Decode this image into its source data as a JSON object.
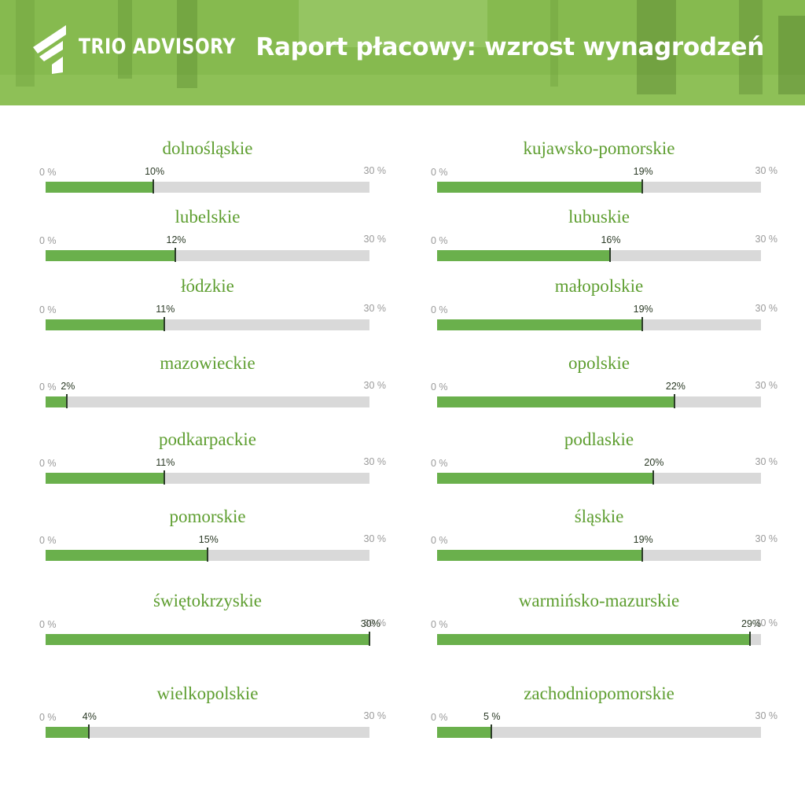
{
  "header": {
    "brand": "TRIO ADVISORY",
    "title": "Raport płacowy: wzrost wynagrodzeń"
  },
  "colors": {
    "header_green": "#7cb342",
    "bar_fill": "#6ab04c",
    "bar_track": "#d9d9d9",
    "region_label": "#5e9e30"
  },
  "icons": {
    "logo": "trio-advisory-logo-icon"
  },
  "chart_data": {
    "type": "bar",
    "orientation": "horizontal",
    "title": "Raport płacowy: wzrost wynagrodzeń",
    "axis": {
      "min": 0,
      "max": 30,
      "min_label": "0 %",
      "max_label": "30 %"
    },
    "grid": false,
    "regions": [
      {
        "name": "dolnośląskie",
        "value": 10,
        "label": "10%"
      },
      {
        "name": "kujawsko-pomorskie",
        "value": 19,
        "label": "19%"
      },
      {
        "name": "lubelskie",
        "value": 12,
        "label": "12%"
      },
      {
        "name": "lubuskie",
        "value": 16,
        "label": "16%"
      },
      {
        "name": "łódzkie",
        "value": 11,
        "label": "11%"
      },
      {
        "name": "małopolskie",
        "value": 19,
        "label": "19%"
      },
      {
        "name": "mazowieckie",
        "value": 2,
        "label": "2%"
      },
      {
        "name": "opolskie",
        "value": 22,
        "label": "22%"
      },
      {
        "name": "podkarpackie",
        "value": 11,
        "label": "11%"
      },
      {
        "name": "podlaskie",
        "value": 20,
        "label": "20%"
      },
      {
        "name": "pomorskie",
        "value": 15,
        "label": "15%"
      },
      {
        "name": "śląskie",
        "value": 19,
        "label": "19%"
      },
      {
        "name": "świętokrzyskie",
        "value": 30,
        "label": "30%"
      },
      {
        "name": "warmińsko-mazurskie",
        "value": 29,
        "label": "29%"
      },
      {
        "name": "wielkopolskie",
        "value": 4,
        "label": "4%"
      },
      {
        "name": "zachodniopomorskie",
        "value": 5,
        "label": "5 %"
      }
    ]
  }
}
